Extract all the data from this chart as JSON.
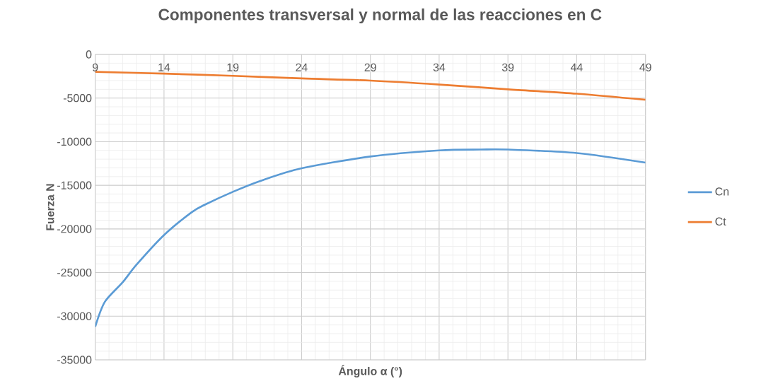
{
  "chart_data": {
    "type": "line",
    "title": "Componentes transversal y normal de las reacciones en C",
    "xlabel": "Ángulo α (°)",
    "ylabel": "Fuerza N",
    "series": [
      {
        "name": "Cn",
        "color": "#5b9bd5",
        "x": [
          9,
          9.7,
          11,
          12,
          14,
          16,
          17,
          19,
          21,
          24,
          29,
          34,
          37,
          39,
          44,
          49
        ],
        "values": [
          -31200,
          -28350,
          -26100,
          -24100,
          -20700,
          -18100,
          -17200,
          -15750,
          -14500,
          -13050,
          -11700,
          -11000,
          -10900,
          -10900,
          -11300,
          -12400
        ]
      },
      {
        "name": "Ct",
        "color": "#ed7d31",
        "x": [
          9,
          14,
          19,
          24,
          29,
          34,
          39,
          44,
          49
        ],
        "values": [
          -2000,
          -2200,
          -2450,
          -2750,
          -3000,
          -3450,
          -4000,
          -4500,
          -5200
        ]
      }
    ],
    "xlim": [
      9,
      49
    ],
    "xticks": [
      9,
      14,
      19,
      24,
      29,
      34,
      39,
      44,
      49
    ],
    "ylim": [
      -35000,
      0
    ],
    "yticks": [
      -35000,
      -30000,
      -25000,
      -20000,
      -15000,
      -10000,
      -5000,
      0
    ],
    "grid": true,
    "legend": "right",
    "marker": "none",
    "line_style": "solid"
  }
}
